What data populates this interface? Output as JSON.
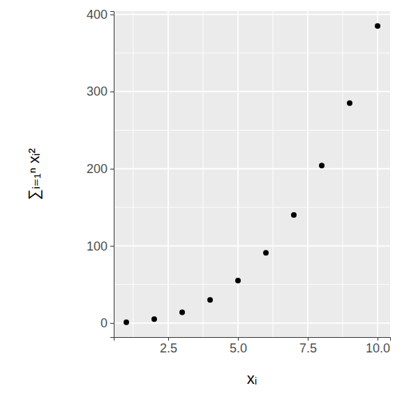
{
  "chart_data": {
    "type": "scatter",
    "xlabel": "xᵢ",
    "ylabel": "∑ᵢ₌₁ⁿ xᵢ²",
    "x": [
      1,
      2,
      3,
      4,
      5,
      6,
      7,
      8,
      9,
      10
    ],
    "values": [
      1,
      5,
      14,
      30,
      55,
      91,
      140,
      204,
      285,
      385
    ],
    "color": "#000000",
    "marker": "circle",
    "xlim": [
      0.55,
      10.45
    ],
    "ylim": [
      -18.2,
      404.2
    ],
    "xticks": [
      2.5,
      {
        "value": 5,
        "label": "5.0"
      },
      {
        "value": 7.5,
        "label": "7.5"
      },
      {
        "value": 10,
        "label": "10.0"
      }
    ],
    "yticks": [
      0,
      100,
      200,
      300,
      400
    ],
    "grid": true
  }
}
